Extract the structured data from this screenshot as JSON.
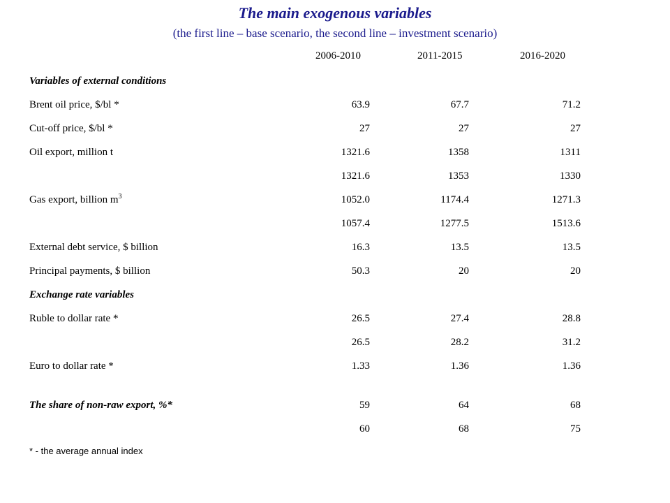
{
  "title": "The main exogenous variables",
  "subtitle": "(the first line – base scenario, the second line – investment scenario)",
  "colors": {
    "title": "#1a1a8c",
    "text": "#000000"
  },
  "columns": [
    "2006-2010",
    "2011-2015",
    "2016-2020"
  ],
  "rows": [
    {
      "label": "Variables of external conditions",
      "section": true
    },
    {
      "label": "Brent oil price, $/bl *",
      "values": [
        "63.9",
        "67.7",
        "71.2"
      ]
    },
    {
      "label": "Cut-off price, $/bl *",
      "values": [
        "27",
        "27",
        "27"
      ]
    },
    {
      "label": "Oil export, million t",
      "values": [
        "1321.6",
        "1358",
        "1311"
      ]
    },
    {
      "label": "",
      "values": [
        "1321.6",
        "1353",
        "1330"
      ]
    },
    {
      "label": "Gas export, billion m",
      "label_sup": "3",
      "values": [
        "1052.0",
        "1174.4",
        "1271.3"
      ]
    },
    {
      "label": "",
      "values": [
        "1057.4",
        "1277.5",
        "1513.6"
      ]
    },
    {
      "label": "External debt service, $ billion",
      "values": [
        "16.3",
        "13.5",
        "13.5"
      ]
    },
    {
      "label": "Principal payments, $ billion",
      "values": [
        "50.3",
        "20",
        "20"
      ]
    },
    {
      "label": "Exchange rate variables",
      "section": true
    },
    {
      "label": "Ruble to dollar rate *",
      "values": [
        "26.5",
        "27.4",
        "28.8"
      ]
    },
    {
      "label": "",
      "values": [
        "26.5",
        "28.2",
        "31.2"
      ]
    },
    {
      "label": "Euro to dollar rate *",
      "values": [
        "1.33",
        "1.36",
        "1.36"
      ]
    },
    {
      "label": "The share of non-raw export, %*",
      "section": true,
      "values": [
        "59",
        "64",
        "68"
      ]
    },
    {
      "label": "",
      "values": [
        "60",
        "68",
        "75"
      ]
    }
  ],
  "footnote": "* - the average annual index"
}
